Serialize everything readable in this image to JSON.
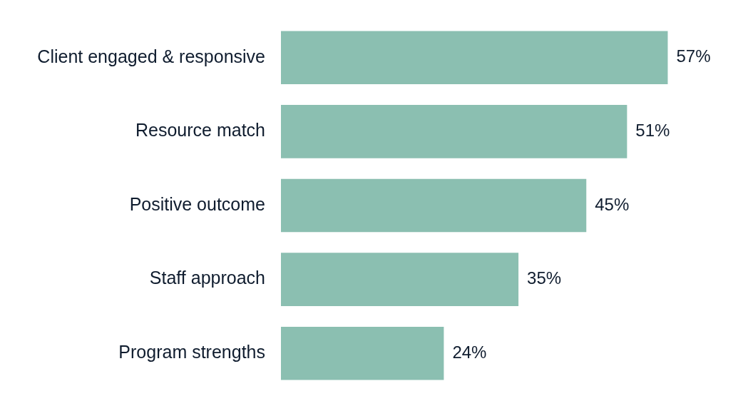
{
  "chart_data": {
    "type": "bar",
    "orientation": "horizontal",
    "categories": [
      "Client engaged & responsive",
      "Resource match",
      "Positive outcome",
      "Staff approach",
      "Program strengths"
    ],
    "values": [
      57,
      51,
      45,
      35,
      24
    ],
    "value_labels": [
      "57%",
      "51%",
      "45%",
      "35%",
      "24%"
    ],
    "color": "#8bbfb1",
    "legend": false
  }
}
